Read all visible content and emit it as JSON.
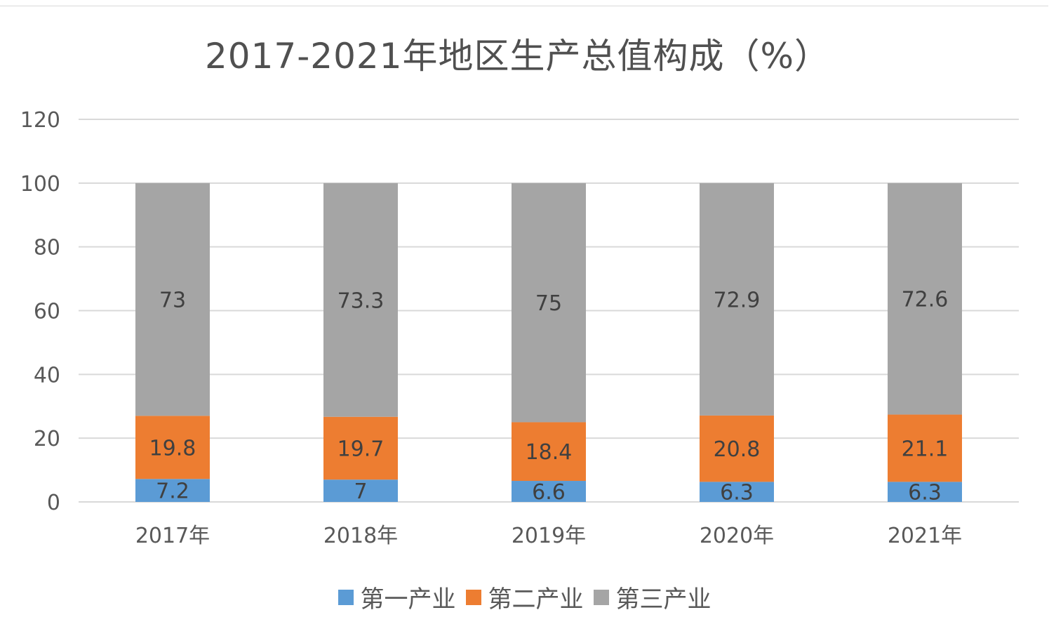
{
  "chart_data": {
    "type": "bar",
    "stacked": true,
    "title": "2017-2021年地区生产总值构成（%）",
    "xlabel": "",
    "ylabel": "",
    "ylim": [
      0,
      120
    ],
    "yticks": [
      0,
      20,
      40,
      60,
      80,
      100,
      120
    ],
    "grid": true,
    "legend_position": "bottom",
    "categories": [
      "2017年",
      "2018年",
      "2019年",
      "2020年",
      "2021年"
    ],
    "series": [
      {
        "name": "第一产业",
        "color": "#5b9bd5",
        "values": [
          7.2,
          7,
          6.6,
          6.3,
          6.3
        ]
      },
      {
        "name": "第二产业",
        "color": "#ed7d31",
        "values": [
          19.8,
          19.7,
          18.4,
          20.8,
          21.1
        ]
      },
      {
        "name": "第三产业",
        "color": "#a5a5a5",
        "values": [
          73,
          73.3,
          75,
          72.9,
          72.6
        ]
      }
    ]
  }
}
